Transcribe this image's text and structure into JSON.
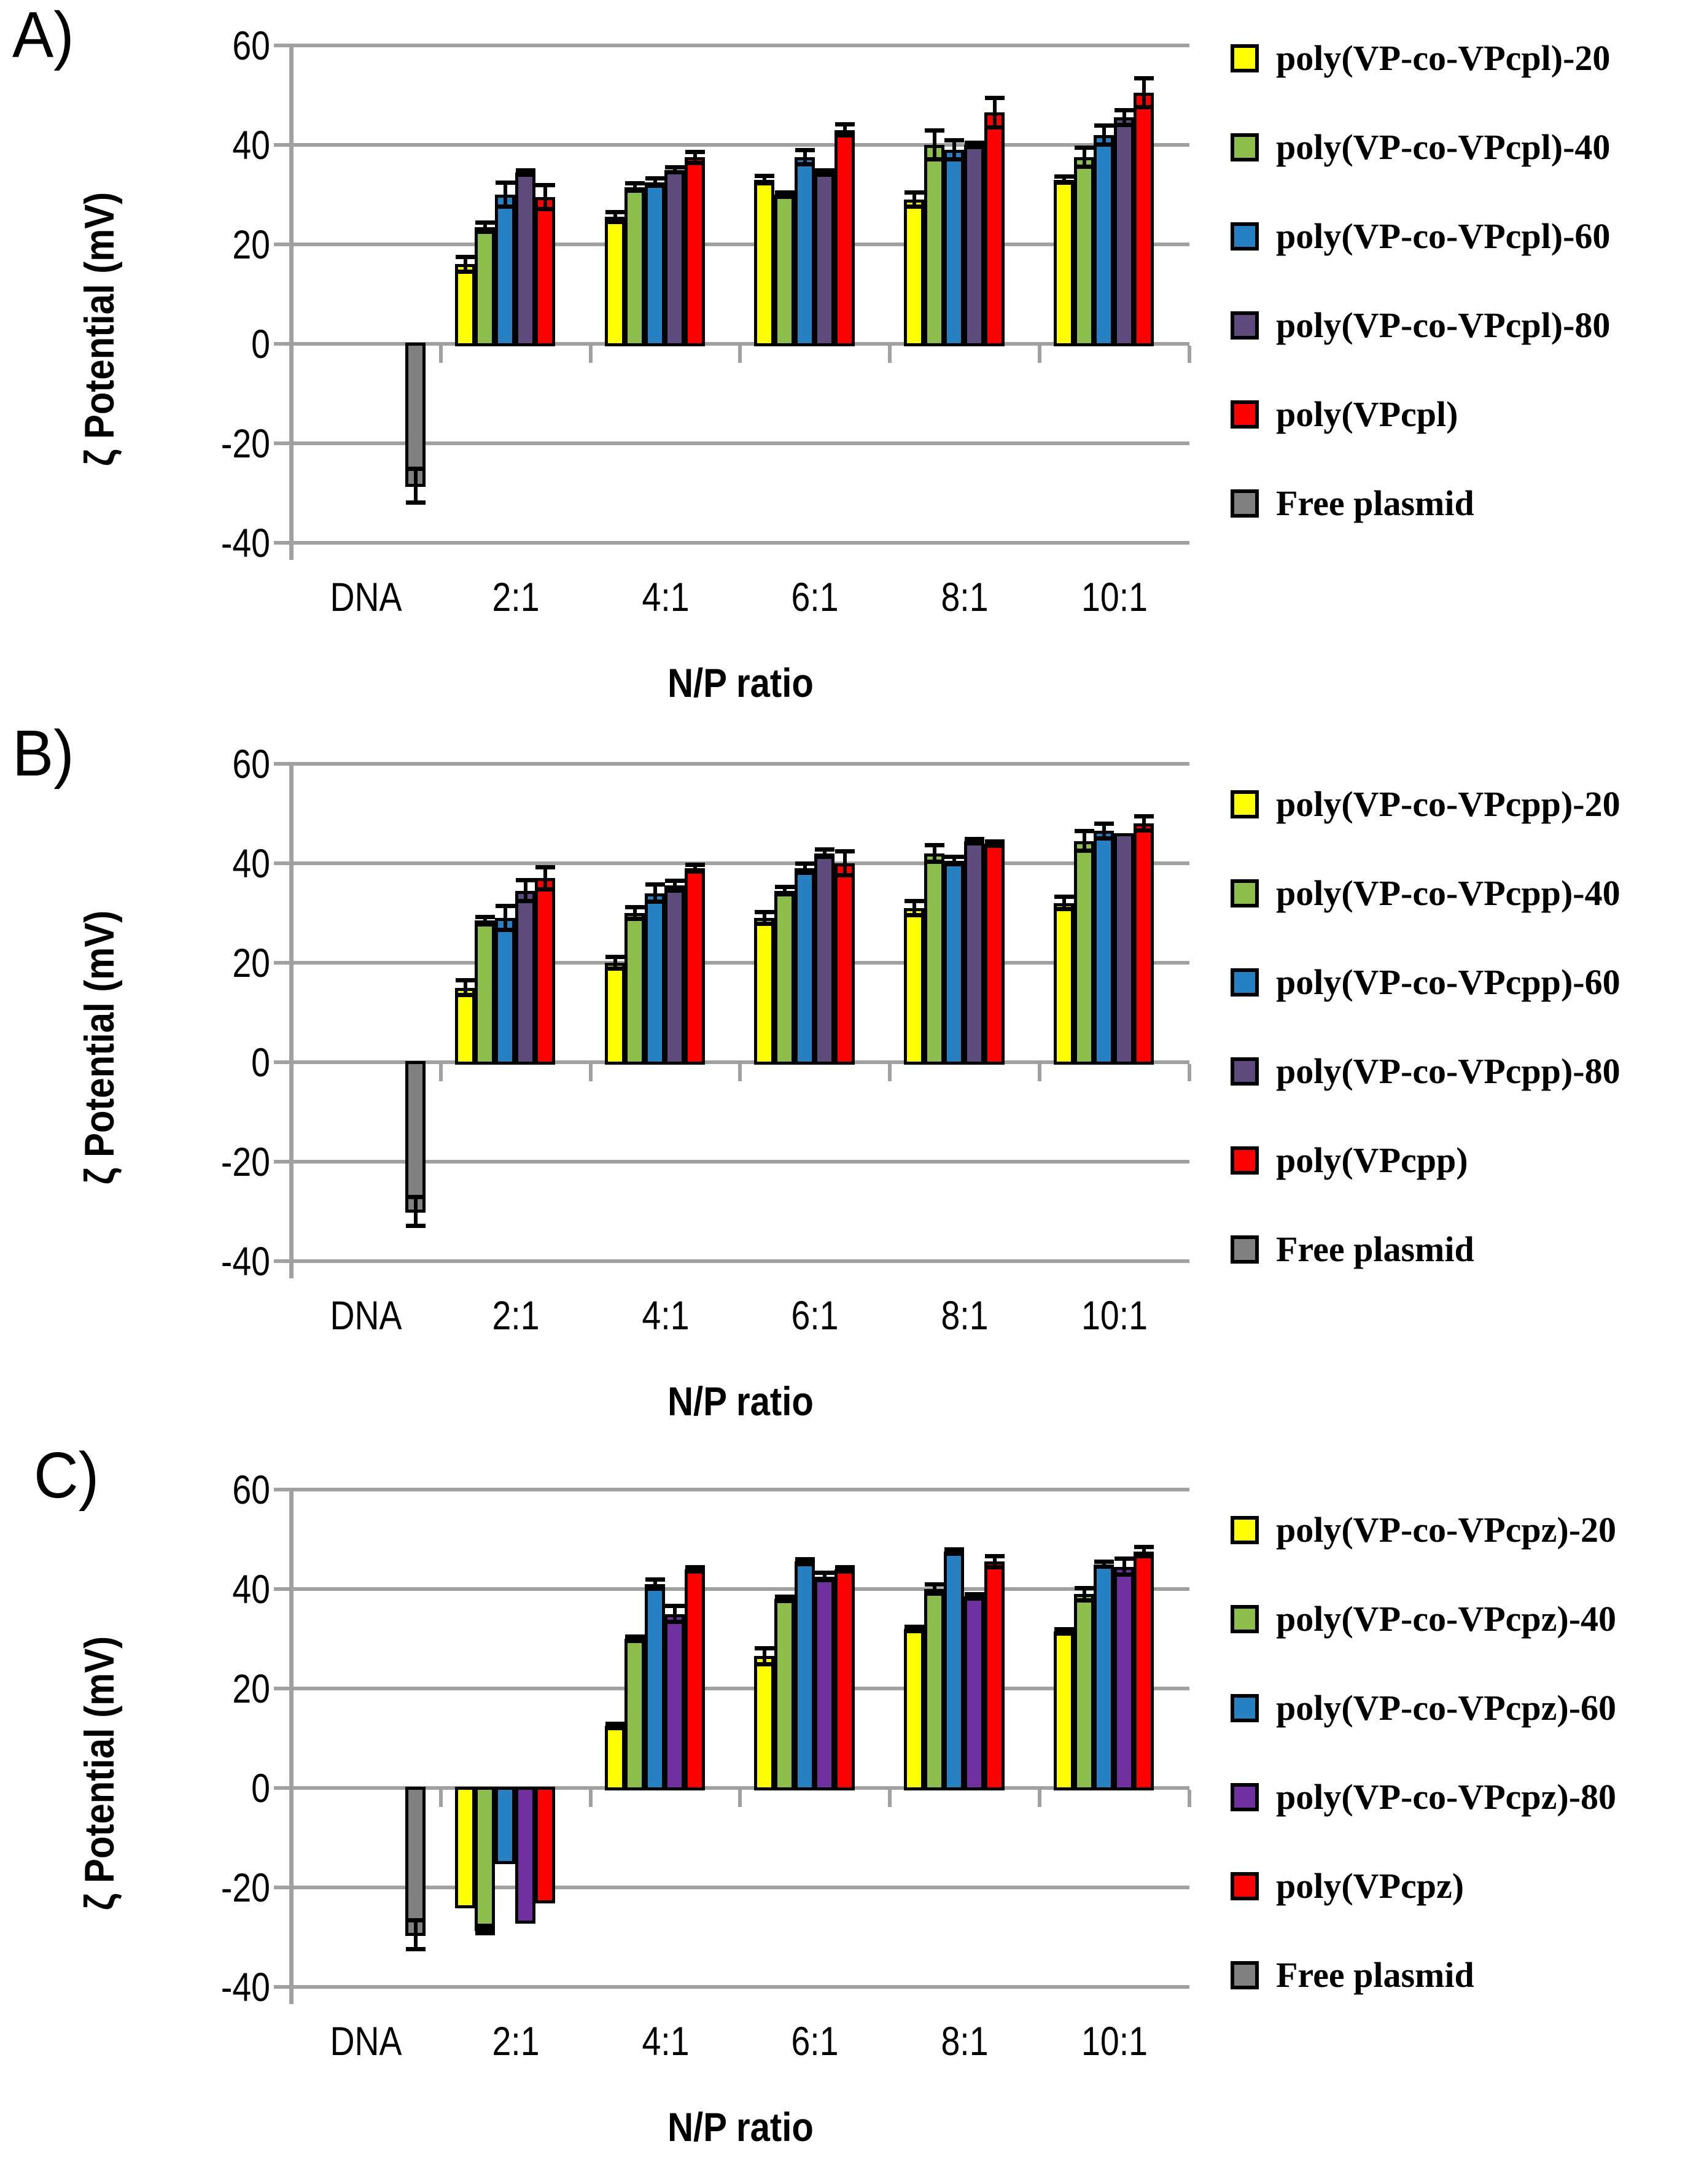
{
  "style": {
    "background": "#FFFFFF",
    "grid_color": "#A0A0A0",
    "bar_outline_color": "#000000",
    "error_bar_color": "#000000"
  },
  "chart_data": [
    {
      "type": "bar",
      "panel_label": "A)",
      "title": "",
      "xlabel": "N/P ratio",
      "ylabel": "ζ Potential (mV)",
      "ylim": [
        -40,
        60
      ],
      "yticks": [
        "60",
        "40",
        "20",
        "0",
        "-20",
        "-40"
      ],
      "grid": true,
      "legend_position": "right",
      "categories": [
        "DNA",
        "2:1",
        "4:1",
        "6:1",
        "8:1",
        "10:1"
      ],
      "series": [
        {
          "name": "poly(VP-co-VPcpl)-20",
          "color": "#FFFF00",
          "values": [
            null,
            16,
            25.5,
            33,
            29,
            33
          ],
          "errors": [
            null,
            1.5,
            1,
            0.8,
            1.5,
            0.7
          ]
        },
        {
          "name": "poly(VP-co-VPcpl)-40",
          "color": "#8DBD4C",
          "values": [
            null,
            23.5,
            31.5,
            30,
            40,
            37.5
          ],
          "errors": [
            null,
            1,
            0.8,
            0.5,
            3,
            2
          ]
        },
        {
          "name": "poly(VP-co-VPcpl)-60",
          "color": "#2680C2",
          "values": [
            null,
            30,
            32.5,
            37.5,
            39,
            42
          ],
          "errors": [
            null,
            2.5,
            0.8,
            1.5,
            2,
            2
          ]
        },
        {
          "name": "poly(VP-co-VPcpl)-80",
          "color": "#5F4A7D",
          "values": [
            null,
            34.5,
            35,
            34.5,
            40,
            45.5
          ],
          "errors": [
            null,
            0.5,
            0.5,
            0.5,
            0.5,
            1.5
          ]
        },
        {
          "name": "poly(VPcpl)",
          "color": "#FF0000",
          "values": [
            null,
            29.5,
            37.5,
            43,
            46.5,
            50.5
          ],
          "errors": [
            null,
            2.5,
            1.2,
            1.2,
            3,
            3
          ]
        },
        {
          "name": "Free plasmid",
          "color": "#808080",
          "values": [
            -28.5,
            null,
            null,
            null,
            null,
            null
          ],
          "errors": [
            3.5,
            null,
            null,
            null,
            null,
            null
          ]
        }
      ]
    },
    {
      "type": "bar",
      "panel_label": "B)",
      "title": "",
      "xlabel": "N/P ratio",
      "ylabel": "ζ Potential (mV)",
      "ylim": [
        -40,
        60
      ],
      "yticks": [
        "60",
        "40",
        "20",
        "0",
        "-20",
        "-40"
      ],
      "grid": true,
      "legend_position": "right",
      "categories": [
        "DNA",
        "2:1",
        "4:1",
        "6:1",
        "8:1",
        "10:1"
      ],
      "series": [
        {
          "name": "poly(VP-co-VPcpp)-20",
          "color": "#FFFF00",
          "values": [
            null,
            15,
            20,
            29,
            31,
            32
          ],
          "errors": [
            null,
            1.5,
            1.2,
            1.2,
            1.5,
            1.3
          ]
        },
        {
          "name": "poly(VP-co-VPcpp)-40",
          "color": "#8DBD4C",
          "values": [
            null,
            28.5,
            30,
            34.5,
            42,
            44.5
          ],
          "errors": [
            null,
            0.8,
            1.2,
            0.8,
            1.7,
            2
          ]
        },
        {
          "name": "poly(VP-co-VPcpp)-60",
          "color": "#2680C2",
          "values": [
            null,
            29,
            34,
            39,
            40.5,
            46.5
          ],
          "errors": [
            null,
            2.5,
            1.8,
            1,
            0.8,
            1.5
          ]
        },
        {
          "name": "poly(VP-co-VPcpp)-80",
          "color": "#5F4A7D",
          "values": [
            null,
            34.5,
            35.5,
            42,
            44.5,
            46
          ],
          "errors": [
            null,
            2.2,
            1,
            0.8,
            0.5,
            null
          ]
        },
        {
          "name": "poly(VPcpp)",
          "color": "#FF0000",
          "values": [
            null,
            37,
            39,
            40,
            44,
            48
          ],
          "errors": [
            null,
            2.3,
            0.7,
            2.5,
            0.5,
            1.5
          ]
        },
        {
          "name": "Free plasmid",
          "color": "#808080",
          "values": [
            -30,
            null,
            null,
            null,
            null,
            null
          ],
          "errors": [
            3,
            null,
            null,
            null,
            null,
            null
          ]
        }
      ]
    },
    {
      "type": "bar",
      "panel_label": "C)",
      "title": "",
      "xlabel": "N/P ratio",
      "ylabel": "ζ Potential (mV)",
      "ylim": [
        -40,
        60
      ],
      "yticks": [
        "60",
        "40",
        "20",
        "0",
        "-20",
        "-40"
      ],
      "grid": true,
      "legend_position": "right",
      "categories": [
        "DNA",
        "2:1",
        "4:1",
        "6:1",
        "8:1",
        "10:1"
      ],
      "series": [
        {
          "name": "poly(VP-co-VPcpz)-20",
          "color": "#FFFF00",
          "values": [
            null,
            -24,
            12.5,
            26.5,
            32,
            31.5
          ],
          "errors": [
            null,
            null,
            0.5,
            1.7,
            0.5,
            0.5
          ]
        },
        {
          "name": "poly(VP-co-VPcpz)-40",
          "color": "#8DBD4C",
          "values": [
            null,
            -28.5,
            30,
            38,
            40,
            39
          ],
          "errors": [
            null,
            0.8,
            0.5,
            0.5,
            1,
            1.3
          ]
        },
        {
          "name": "poly(VP-co-VPcpz)-60",
          "color": "#2680C2",
          "values": [
            null,
            -15,
            41,
            45.5,
            47.5,
            45
          ],
          "errors": [
            null,
            null,
            1,
            0.5,
            0.5,
            0.5
          ]
        },
        {
          "name": "poly(VP-co-VPcpz)-80",
          "color": "#7030A0",
          "values": [
            null,
            -27,
            35,
            42.5,
            38.5,
            44.5
          ],
          "errors": [
            null,
            null,
            1.7,
            0.8,
            0.5,
            1.7
          ]
        },
        {
          "name": "poly(VPcpz)",
          "color": "#FF0000",
          "values": [
            null,
            -23,
            44,
            44,
            45.5,
            47.5
          ],
          "errors": [
            null,
            null,
            0.5,
            0.5,
            1.2,
            1
          ]
        },
        {
          "name": "Free plasmid",
          "color": "#808080",
          "values": [
            -29.5,
            null,
            null,
            null,
            null,
            null
          ],
          "errors": [
            3,
            null,
            null,
            null,
            null,
            null
          ]
        }
      ]
    }
  ]
}
